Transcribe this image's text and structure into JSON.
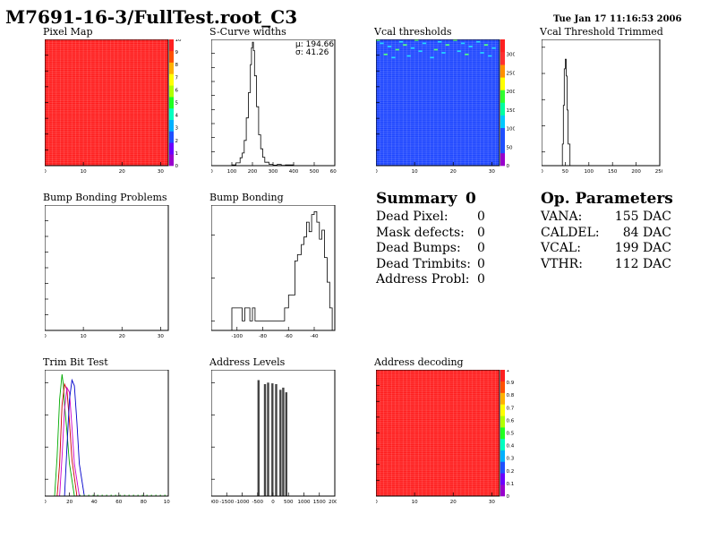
{
  "header": {
    "title": "M7691-16-3/FullTest.root_C3",
    "date": "Tue Jan 17 11:16:53 2006"
  },
  "colors": {
    "map_red": "#ff1e1e",
    "map_blue": "#1e46ff",
    "line": "#000000",
    "palette": [
      "#9900cc",
      "#6a00ff",
      "#2050ff",
      "#00b0ff",
      "#00ffc0",
      "#20ff20",
      "#b0ff00",
      "#ffff00",
      "#ffb000",
      "#ff5000",
      "#ff2020"
    ]
  },
  "panels": {
    "pixel_map": {
      "title": "Pixel Map",
      "chart_data": {
        "type": "heatmap",
        "xlim": [
          0,
          32
        ],
        "ylim": [
          0,
          80
        ],
        "x_ticks": [
          0,
          10,
          20,
          30
        ],
        "y_ticks": [
          0,
          10,
          20,
          30,
          40,
          50,
          60,
          70,
          80
        ],
        "z_ticks": [
          0,
          1,
          2,
          3,
          4,
          5,
          6,
          7,
          8,
          9,
          10
        ],
        "fill_value": 10
      }
    },
    "scurve_widths": {
      "title": "S-Curve widths",
      "stats": {
        "mean": "μ: 194.66",
        "sigma": "σ: 41.26"
      },
      "chart_data": {
        "type": "line",
        "xlim": [
          0,
          600
        ],
        "ylim": [
          0,
          450
        ],
        "x_ticks": [
          0,
          100,
          200,
          300,
          400,
          500,
          600
        ],
        "y_ticks": [
          0,
          50,
          100,
          150,
          200,
          250,
          300,
          350,
          400
        ],
        "x": [
          0,
          80,
          100,
          120,
          140,
          150,
          160,
          170,
          180,
          190,
          195,
          200,
          205,
          210,
          220,
          230,
          240,
          250,
          260,
          280,
          300,
          320,
          340,
          360,
          400,
          600
        ],
        "y": [
          0,
          0,
          3,
          10,
          28,
          45,
          90,
          170,
          260,
          360,
          420,
          440,
          410,
          320,
          210,
          110,
          60,
          30,
          12,
          5,
          2,
          4,
          1,
          3,
          0,
          0
        ]
      }
    },
    "vcal_thresholds": {
      "title": "Vcal thresholds",
      "chart_data": {
        "type": "heatmap",
        "xlim": [
          0,
          32
        ],
        "ylim": [
          0,
          80
        ],
        "x_ticks": [
          0,
          10,
          20,
          30
        ],
        "y_ticks": [
          0,
          10,
          20,
          30,
          40,
          50,
          60,
          70,
          80
        ],
        "z_ticks": [
          0,
          50,
          100,
          150,
          200,
          250,
          300
        ],
        "zlim": [
          0,
          340
        ],
        "fill_value": 199
      }
    },
    "vcal_trimmed": {
      "title": "Vcal Threshold Trimmed",
      "chart_data": {
        "type": "line",
        "log_y": true,
        "xlim": [
          0,
          250
        ],
        "ylim": [
          0.3,
          20000
        ],
        "x_ticks": [
          0,
          50,
          100,
          150,
          200,
          250
        ],
        "y_ticks": [
          1,
          10,
          100,
          1000,
          10000
        ],
        "x": [
          0,
          42,
          44,
          46,
          48,
          50,
          52,
          54,
          56,
          60,
          250
        ],
        "y": [
          0.3,
          0.3,
          2,
          60,
          1500,
          3500,
          800,
          40,
          2,
          0.3,
          0.3
        ]
      }
    },
    "bump_problems": {
      "title": "Bump Bonding Problems",
      "chart_data": {
        "type": "heatmap",
        "xlim": [
          0,
          32
        ],
        "ylim": [
          0,
          80
        ],
        "x_ticks": [
          0,
          10,
          20,
          30
        ],
        "y_ticks": [
          0,
          10,
          20,
          30,
          40,
          50,
          60,
          70,
          80
        ]
      }
    },
    "bump_bonding": {
      "title": "Bump Bonding",
      "chart_data": {
        "type": "line",
        "log_y": true,
        "xlim": [
          -120,
          -24
        ],
        "ylim": [
          0.6,
          500
        ],
        "x_ticks": [
          -100,
          -80,
          -60,
          -40
        ],
        "x_tick_labels": [
          "-100",
          "-80",
          "-60",
          "-40"
        ],
        "y_ticks": [
          1,
          10,
          100
        ],
        "x": [
          -105,
          -104,
          -96,
          -94,
          -90,
          -89,
          -88,
          -86,
          -70,
          -63,
          -60,
          -55,
          -53,
          -50,
          -48,
          -46,
          -44,
          -42,
          -40,
          -38,
          -36,
          -34,
          -32,
          -30,
          -28,
          -26
        ],
        "y": [
          0.6,
          2,
          1,
          2,
          1,
          1,
          2,
          1,
          1,
          2,
          4,
          25,
          35,
          60,
          90,
          200,
          120,
          300,
          350,
          200,
          80,
          130,
          30,
          8,
          2,
          0.6
        ]
      }
    },
    "trim_bit_test": {
      "title": "Trim Bit Test",
      "chart_data": {
        "type": "line",
        "log_y": true,
        "xlim": [
          0,
          100
        ],
        "ylim": [
          0.3,
          2500
        ],
        "x_ticks": [
          0,
          20,
          40,
          60,
          80,
          100
        ],
        "y_ticks": [
          1,
          10,
          100,
          1000
        ],
        "series": [
          {
            "color": "#00aa00",
            "x": [
              8,
              10,
              12,
              14,
              15,
              16,
              18,
              20,
              24
            ],
            "y": [
              0.3,
              5,
              300,
              1800,
              900,
              200,
              30,
              3,
              0.3
            ]
          },
          {
            "color": "#cc0000",
            "x": [
              10,
              12,
              14,
              16,
              18,
              20,
              22,
              26
            ],
            "y": [
              0.3,
              3,
              200,
              900,
              600,
              60,
              4,
              0.3
            ]
          },
          {
            "color": "#cc00cc",
            "x": [
              12,
              14,
              16,
              18,
              20,
              22,
              24,
              28
            ],
            "y": [
              0.3,
              5,
              150,
              700,
              500,
              40,
              3,
              0.3
            ]
          },
          {
            "color": "#0000cc",
            "x": [
              16,
              18,
              20,
              22,
              24,
              26,
              28,
              32
            ],
            "y": [
              0.3,
              10,
              300,
              1200,
              800,
              60,
              3,
              0.3
            ]
          }
        ]
      }
    },
    "address_levels": {
      "title": "Address Levels",
      "chart_data": {
        "type": "bar",
        "log_y": true,
        "xlim": [
          -2000,
          2000
        ],
        "ylim": [
          0.3,
          2500
        ],
        "x_ticks": [
          -2000,
          -1500,
          -1000,
          -500,
          0,
          500,
          1000,
          1500,
          2000
        ],
        "y_ticks": [
          1,
          10,
          100,
          1000
        ],
        "x": [
          -470,
          -260,
          -160,
          -20,
          100,
          240,
          330,
          430
        ],
        "y": [
          1200,
          900,
          1000,
          950,
          900,
          600,
          700,
          500
        ]
      }
    },
    "address_decoding": {
      "title": "Address decoding",
      "chart_data": {
        "type": "heatmap",
        "xlim": [
          0,
          32
        ],
        "ylim": [
          0,
          80
        ],
        "x_ticks": [
          0,
          10,
          20,
          30
        ],
        "y_ticks": [
          0,
          10,
          20,
          30,
          40,
          50,
          60,
          70,
          80
        ],
        "z_ticks": [
          0,
          0.1,
          0.2,
          0.3,
          0.4,
          0.5,
          0.6,
          0.7,
          0.8,
          0.9,
          1
        ],
        "fill_value": 1
      }
    }
  },
  "summary": {
    "heading": "Summary",
    "heading_value": "0",
    "rows": [
      {
        "label": "Dead Pixel:",
        "value": "0"
      },
      {
        "label": "Mask defects:",
        "value": "0"
      },
      {
        "label": "Dead Bumps:",
        "value": "0"
      },
      {
        "label": "Dead Trimbits:",
        "value": "0"
      },
      {
        "label": "Address Probl:",
        "value": "0"
      }
    ]
  },
  "op_params": {
    "heading": "Op. Parameters",
    "rows": [
      {
        "label": "VANA:",
        "value": "155 DAC"
      },
      {
        "label": "CALDEL:",
        "value": "84 DAC"
      },
      {
        "label": "VCAL:",
        "value": "199 DAC"
      },
      {
        "label": "VTHR:",
        "value": "112 DAC"
      }
    ]
  }
}
